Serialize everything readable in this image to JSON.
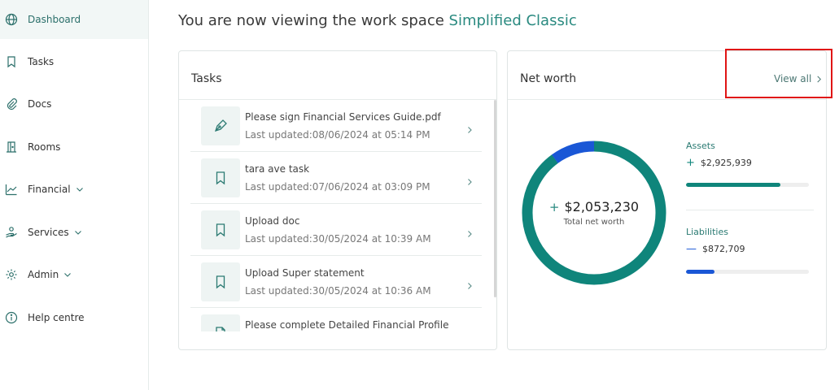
{
  "workspace": {
    "prefix": "You are now viewing the work space",
    "name": "Simplified Classic"
  },
  "sidebar": {
    "items": [
      {
        "label": "Dashboard",
        "icon": "globe-icon",
        "active": true
      },
      {
        "label": "Tasks",
        "icon": "bookmark-icon"
      },
      {
        "label": "Docs",
        "icon": "paperclip-icon"
      },
      {
        "label": "Rooms",
        "icon": "door-icon"
      },
      {
        "label": "Financial",
        "icon": "chart-line-icon",
        "has_dropdown": true
      },
      {
        "label": "Services",
        "icon": "services-icon",
        "has_dropdown": true
      },
      {
        "label": "Admin",
        "icon": "gear-icon",
        "has_dropdown": true
      },
      {
        "label": "Help centre",
        "icon": "info-icon"
      }
    ]
  },
  "tasks": {
    "title": "Tasks",
    "items": [
      {
        "title": "Please sign Financial Services Guide.pdf",
        "updated": "Last updated:08/06/2024 at 05:14 PM",
        "icon": "pen-icon"
      },
      {
        "title": "tara ave task",
        "updated": "Last updated:07/06/2024 at 03:09 PM",
        "icon": "bookmark-icon"
      },
      {
        "title": "Upload doc",
        "updated": "Last updated:30/05/2024 at 10:39 AM",
        "icon": "bookmark-icon"
      },
      {
        "title": "Upload Super statement",
        "updated": "Last updated:30/05/2024 at 10:36 AM",
        "icon": "bookmark-icon"
      },
      {
        "title": "Please complete Detailed Financial Profile",
        "updated": "",
        "icon": "document-icon"
      }
    ]
  },
  "net_worth": {
    "title": "Net worth",
    "view_all": "View all",
    "total_sign": "+",
    "total": "$2,053,230",
    "total_label": "Total net worth",
    "assets": {
      "label": "Assets",
      "sign": "+",
      "value": "$2,925,939",
      "fraction": 0.77,
      "color": "#0f857b"
    },
    "liabilities": {
      "label": "Liabilities",
      "sign": "—",
      "value": "$872,709",
      "fraction": 0.23,
      "color": "#1a57d6"
    }
  }
}
